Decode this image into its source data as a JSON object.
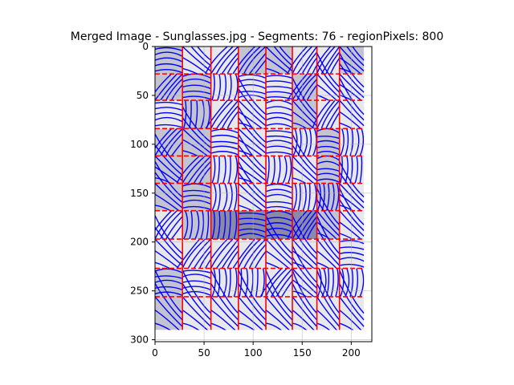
{
  "chart_data": {
    "type": "heatmap",
    "title": "Merged Image - Sunglasses.jpg - Segments: 76 - regionPixels: 800",
    "xlabel": "",
    "ylabel": "",
    "xlim": [
      0,
      221
    ],
    "ylim": [
      302,
      0
    ],
    "image_extent": {
      "width": 213,
      "height": 290
    },
    "grid": true,
    "x_ticks": [
      0,
      50,
      100,
      150,
      200
    ],
    "y_ticks": [
      0,
      50,
      100,
      150,
      200,
      250,
      300
    ],
    "x_tick_labels": [
      "0",
      "50",
      "100",
      "150",
      "200"
    ],
    "y_tick_labels": [
      "0",
      "50",
      "100",
      "150",
      "200",
      "250",
      "300"
    ],
    "segment_boundaries": {
      "columns": [
        0,
        28,
        57,
        85,
        113,
        140,
        165,
        188,
        213
      ],
      "rows": [
        0,
        28,
        55,
        84,
        112,
        140,
        168,
        197,
        227,
        256,
        290
      ]
    },
    "colors": {
      "boundary": "#ff0000",
      "flow_lines": "#0000ff",
      "cell_light": "#e8e8ea",
      "cell_mid": "#c4c4d0",
      "cell_dark": "#8a8aa6"
    }
  }
}
